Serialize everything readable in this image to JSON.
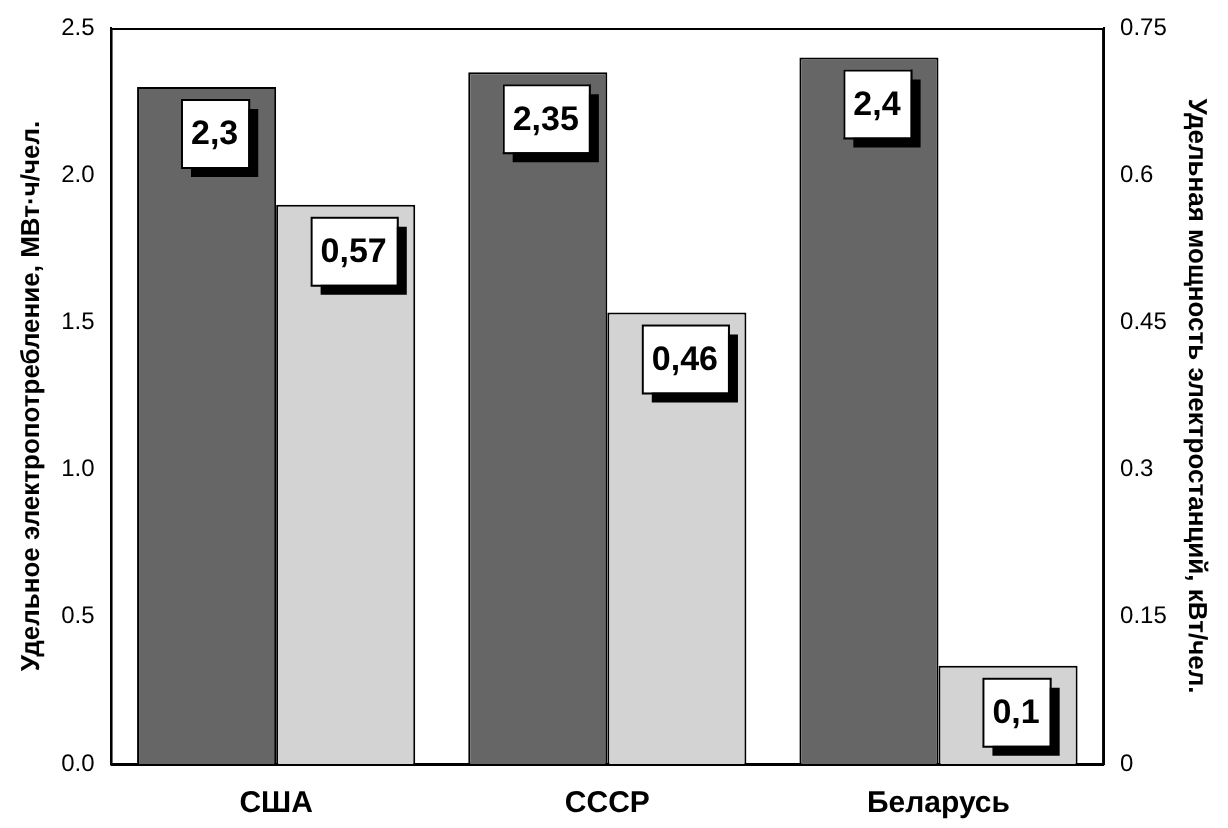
{
  "chart_data": {
    "type": "bar",
    "categories": [
      "США",
      "СССР",
      "Беларусь"
    ],
    "ylabel": "Удельное электропотребление, МВт·ч/чел.",
    "y2label": "Удельная мощность электростанций, кВт/чел.",
    "series": [
      {
        "color": "#666666",
        "values": [
          2.3,
          2.35,
          2.4
        ],
        "value_labels": [
          "2,3",
          "2,35",
          "2,4"
        ]
      },
      {
        "color": "#d3d3d3",
        "values": [
          0.57,
          0.46,
          0.1
        ],
        "value_labels": [
          "0,57",
          "0,46",
          "0,1"
        ],
        "axis": "y2"
      }
    ],
    "ylim": [
      0,
      2.5
    ],
    "yticks": [
      {
        "value": 0,
        "label": "0.0"
      },
      {
        "value": 0.5,
        "label": "0.5"
      },
      {
        "value": 1,
        "label": "1.0"
      },
      {
        "value": 1.5,
        "label": "1.5"
      },
      {
        "value": 2,
        "label": "2.0"
      },
      {
        "value": 2.5,
        "label": "2.5"
      }
    ],
    "y2lim": [
      0,
      0.75
    ],
    "y2ticks": [
      0,
      0.15,
      0.3,
      0.45,
      0.6,
      0.75
    ],
    "grid": false,
    "legend": false
  }
}
